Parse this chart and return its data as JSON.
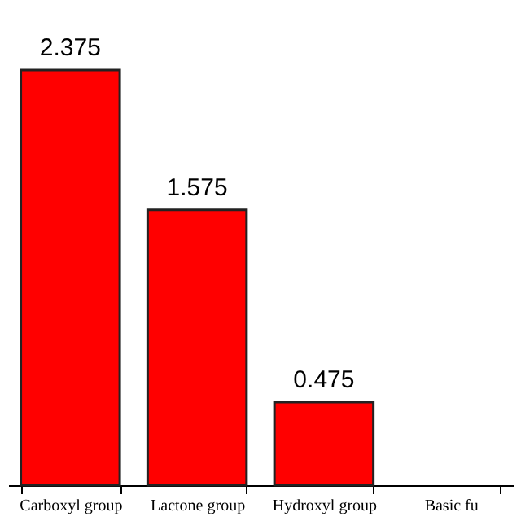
{
  "chart_data": {
    "type": "bar",
    "categories": [
      "Carboxyl group",
      "Lactone group",
      "Hydroxyl group",
      "Basic fu"
    ],
    "values": [
      2.375,
      1.575,
      0.475,
      null
    ],
    "color": "#ff0000",
    "data_labels": true,
    "tick_labels": "x"
  }
}
